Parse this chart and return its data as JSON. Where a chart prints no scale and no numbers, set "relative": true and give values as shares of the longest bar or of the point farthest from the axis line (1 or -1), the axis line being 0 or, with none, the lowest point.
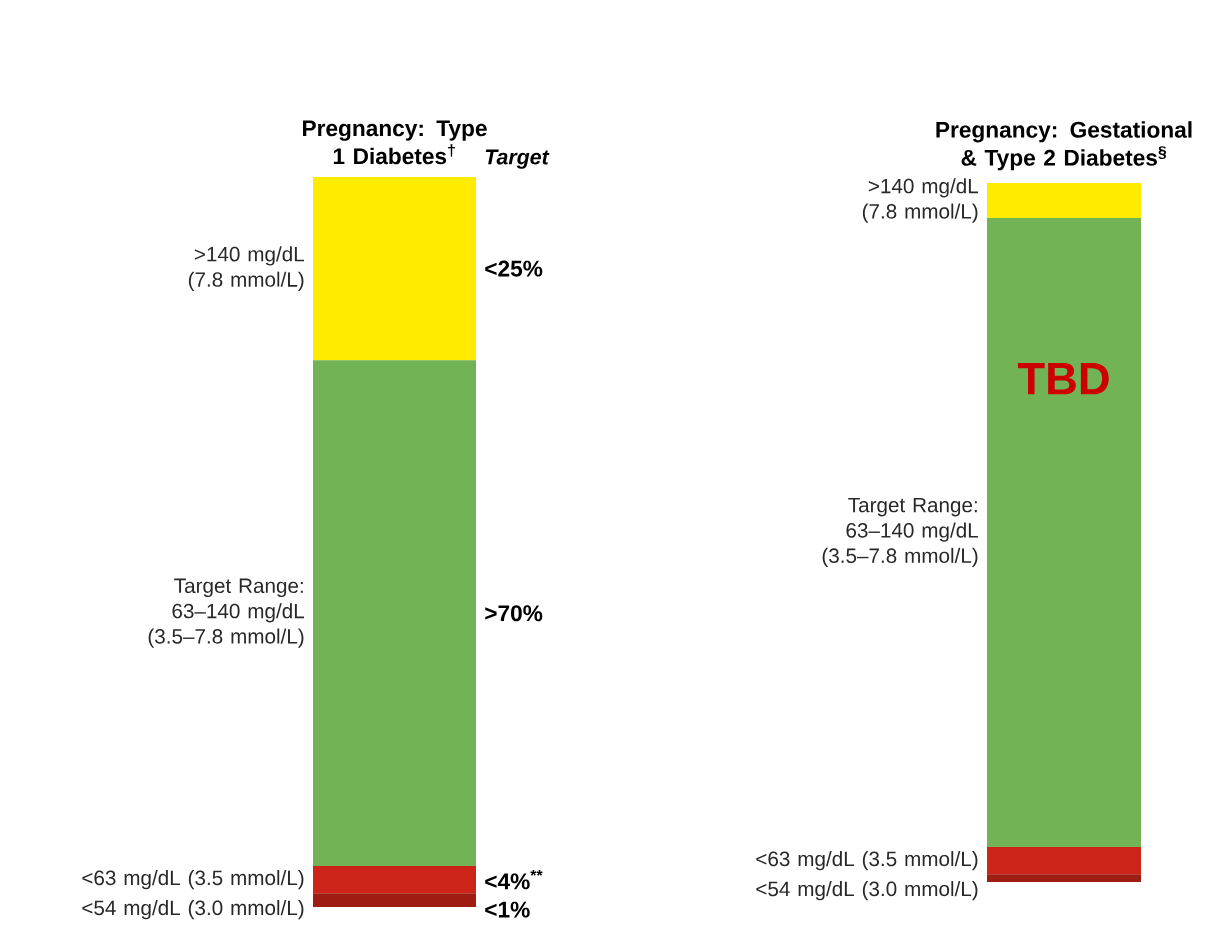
{
  "chart_data": [
    {
      "type": "bar",
      "title": "Pregnancy: Type 1 Diabetes$^{†}$",
      "stacked": true,
      "relative": true,
      "categories": [
        null
      ],
      "annotations": [
        "Target",
        "<25%",
        ">70%",
        "<4%$^{**}$",
        "<1%"
      ],
      "series": [
        {
          "name": "<54 mg/dL (3.0 mmol/L)",
          "color": "#9e1c12",
          "values": [
            0.019
          ]
        },
        {
          "name": "<63 mg/dL (3.5 mmol/L)",
          "color": "#cc2419",
          "values": [
            0.037
          ]
        },
        {
          "name": "Target Range: 63–140 mg/dL (3.5–7.8 mmol/L)",
          "color": "#72b356",
          "values": [
            0.693
          ]
        },
        {
          "name": ">140 mg/dL (7.8 mmol/L)",
          "color": "#ffeb00",
          "values": [
            0.251
          ]
        }
      ]
    },
    {
      "type": "bar",
      "title": "Pregnancy: Gestational & Type 2 Diabetes$^{§}$",
      "stacked": true,
      "relative": true,
      "categories": [
        null
      ],
      "annotations": [
        "TBD"
      ],
      "series": [
        {
          "name": "<54 mg/dL (3.0 mmol/L)",
          "color": "#9e1c12",
          "values": [
            0.011
          ]
        },
        {
          "name": "<63 mg/dL (3.5 mmol/L)",
          "color": "#cc2419",
          "values": [
            0.039
          ]
        },
        {
          "name": "Target Range: 63–140 mg/dL (3.5–7.8 mmol/L)",
          "color": "#72b356",
          "values": [
            0.9
          ]
        },
        {
          "name": ">140 mg/dL (7.8 mmol/L)",
          "color": "#ffeb00",
          "values": [
            0.05
          ]
        }
      ]
    }
  ]
}
